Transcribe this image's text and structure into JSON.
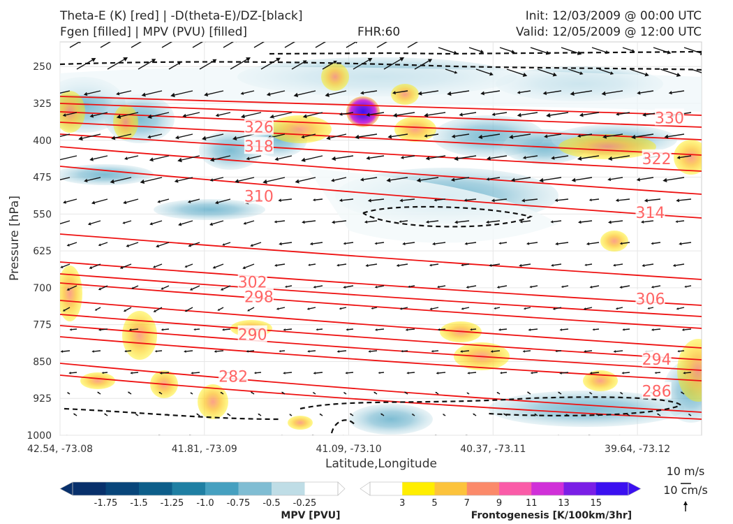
{
  "header": {
    "title_line1": "Theta-E (K) [red] | -D(theta-E)/DZ-[black]",
    "title_line2": "Fgen [filled] | MPV (PVU) [filled]",
    "fhr": "FHR:60",
    "init": "Init: 12/03/2009 @ 00:00 UTC",
    "valid": "Valid: 12/05/2009 @ 12:00 UTC"
  },
  "chart_data": {
    "type": "contour",
    "title": "Theta-E (K) [red] | -D(theta-E)/DZ-[black] / Fgen [filled] | MPV (PVU) [filled]",
    "xlabel": "Latitude,Longitude",
    "ylabel": "Pressure [hPa]",
    "x_ticks": [
      "42.54, -73.08",
      "41.81, -73.09",
      "41.09, -73.10",
      "40.37, -73.11",
      "39.64, -73.12"
    ],
    "y_ticks": [
      250,
      325,
      400,
      475,
      550,
      625,
      700,
      775,
      850,
      925,
      1000
    ],
    "ylim": [
      1000,
      200
    ],
    "xlim": [
      0,
      1
    ],
    "y_inverted": true,
    "grid": true,
    "theta_e_contours": [
      {
        "label": 282,
        "x_frac": 0.27,
        "p": 880
      },
      {
        "label": 286,
        "x_frac": 0.93,
        "p": 910
      },
      {
        "label": 290,
        "x_frac": 0.3,
        "p": 795
      },
      {
        "label": 294,
        "x_frac": 0.93,
        "p": 845
      },
      {
        "label": 298,
        "x_frac": 0.31,
        "p": 718
      },
      {
        "label": 302,
        "x_frac": 0.3,
        "p": 688
      },
      {
        "label": 306,
        "x_frac": 0.92,
        "p": 722
      },
      {
        "label": 310,
        "x_frac": 0.31,
        "p": 513
      },
      {
        "label": 314,
        "x_frac": 0.92,
        "p": 547
      },
      {
        "label": 318,
        "x_frac": 0.31,
        "p": 412
      },
      {
        "label": 322,
        "x_frac": 0.93,
        "p": 437
      },
      {
        "label": 326,
        "x_frac": 0.31,
        "p": 373
      },
      {
        "label": 330,
        "x_frac": 0.95,
        "p": 354
      }
    ],
    "mpv_colorbar": {
      "title": "MPV [PVU]",
      "ticks": [
        "-1.75",
        "-1.5",
        "-1.25",
        "-1.0",
        "-0.75",
        "-0.5",
        "-0.25"
      ],
      "colors": [
        "#08306b",
        "#08457a",
        "#0d5e8a",
        "#1f7fa3",
        "#46a0c0",
        "#80bdd3",
        "#bfdde6",
        "#ffffff"
      ]
    },
    "fgen_colorbar": {
      "title": "Frontogenesis [K/100km/3hr]",
      "ticks": [
        "3",
        "5",
        "7",
        "9",
        "11",
        "13",
        "15"
      ],
      "colors": [
        "#ffffff",
        "#ffee00",
        "#fcc33c",
        "#fb8a6a",
        "#fa5ca8",
        "#d030d8",
        "#7a1fe6",
        "#3b10f0"
      ]
    },
    "quiver_key": {
      "horizontal_label": "10 m/s",
      "vertical_label": "10 cm/s"
    }
  }
}
